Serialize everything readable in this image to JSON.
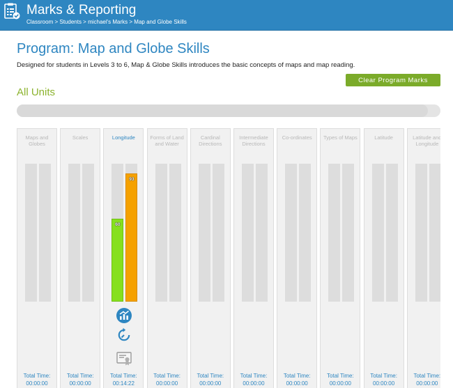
{
  "header": {
    "title": "Marks & Reporting",
    "breadcrumb": [
      "Classroom",
      "Students",
      "michael's Marks",
      "Map and Globe Skills"
    ],
    "breadcrumb_separator": " > "
  },
  "program": {
    "title": "Program: Map and Globe Skills",
    "description": "Designed for students in Levels 3 to 6, Map & Globe Skills introduces the basic concepts of maps and map reading.",
    "clear_button": "Clear Program Marks",
    "section_title": "All Units",
    "overall_progress_percent": 97
  },
  "colors": {
    "header_blue": "#2e86c1",
    "accent_green": "#7bab2a",
    "bar_green": "#86e01e",
    "bar_orange": "#f5a100"
  },
  "units": [
    {
      "name": "Maps and Globes",
      "total_label": "Total Time:",
      "total_time": "00:00:00"
    },
    {
      "name": "Scales",
      "total_label": "Total Time:",
      "total_time": "00:00:00"
    },
    {
      "name": "Longitude",
      "active": true,
      "bar1": {
        "value": 60,
        "label": "60"
      },
      "bar2": {
        "value": 93,
        "label": "93"
      },
      "icons": [
        "bar-chart-icon",
        "retry-icon",
        "certificate-icon"
      ],
      "total_label": "Total Time:",
      "total_time": "00:14:22"
    },
    {
      "name": "Forms of Land and Water",
      "total_label": "Total Time:",
      "total_time": "00:00:00"
    },
    {
      "name": "Cardinal Directions",
      "total_label": "Total Time:",
      "total_time": "00:00:00"
    },
    {
      "name": "Intermediate Directions",
      "total_label": "Total Time:",
      "total_time": "00:00:00"
    },
    {
      "name": "Co-ordinates",
      "total_label": "Total Time:",
      "total_time": "00:00:00"
    },
    {
      "name": "Types of Maps",
      "total_label": "Total Time:",
      "total_time": "00:00:00"
    },
    {
      "name": "Latitude",
      "total_label": "Total Time:",
      "total_time": "00:00:00"
    },
    {
      "name": "Latitude and Longitude",
      "total_label": "Total Time:",
      "total_time": "00:00:00"
    }
  ]
}
